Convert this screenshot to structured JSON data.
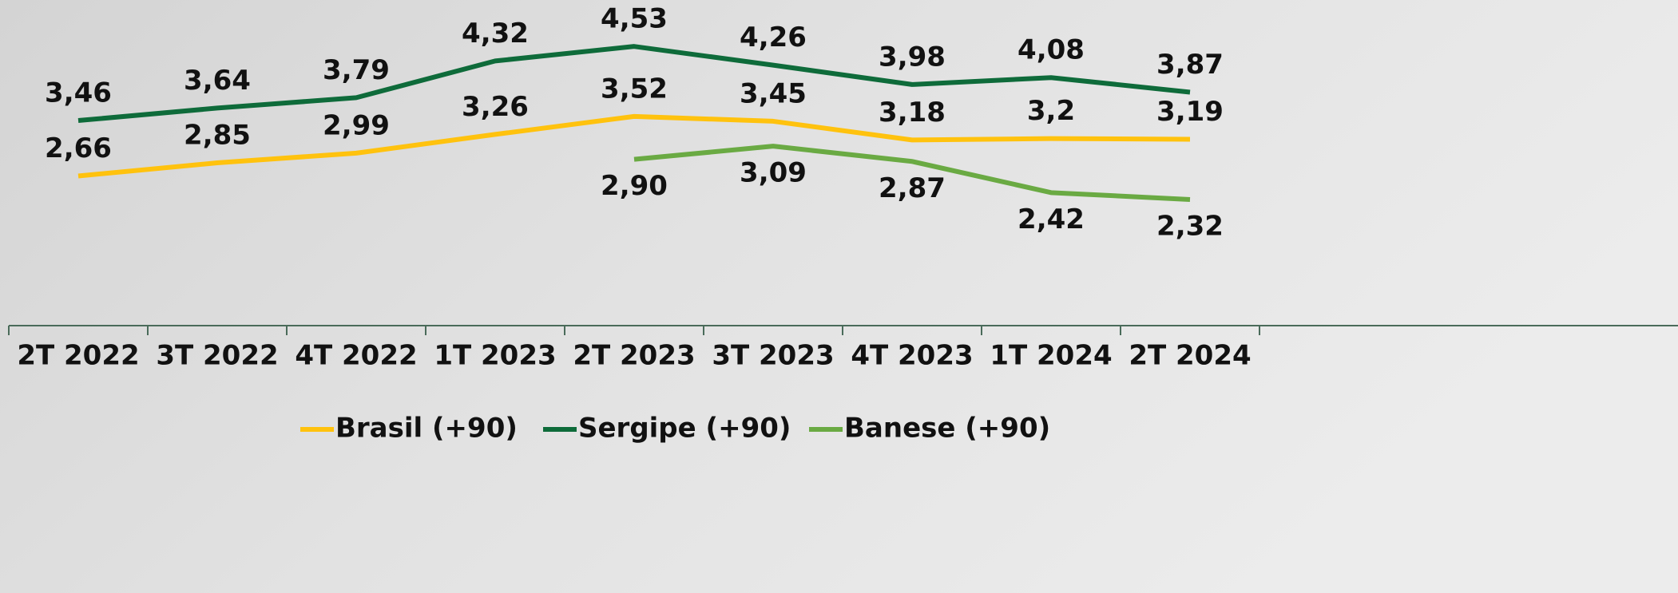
{
  "chart_data": {
    "type": "line",
    "categories": [
      "2T 2022",
      "3T 2022",
      "4T 2022",
      "1T 2023",
      "2T 2023",
      "3T 2023",
      "4T 2023",
      "1T 2024",
      "2T 2024"
    ],
    "series": [
      {
        "name": "Brasil (+90)",
        "color": "#ffc20e",
        "values": [
          2.66,
          2.85,
          2.99,
          3.26,
          3.52,
          3.45,
          3.18,
          3.2,
          3.19
        ],
        "value_labels": [
          "2,66",
          "2,85",
          "2,99",
          "3,26",
          "3,52",
          "3,45",
          "3,18",
          "3,2",
          "3,19"
        ]
      },
      {
        "name": "Sergipe (+90)",
        "color": "#0e6b3a",
        "values": [
          3.46,
          3.64,
          3.79,
          4.32,
          4.53,
          4.26,
          3.98,
          4.08,
          3.87
        ],
        "value_labels": [
          "3,46",
          "3,64",
          "3,79",
          "4,32",
          "4,53",
          "4,26",
          "3,98",
          "4,08",
          "3,87"
        ]
      },
      {
        "name": "Banese (+90)",
        "color": "#6aaa43",
        "values": [
          null,
          null,
          null,
          null,
          2.9,
          3.09,
          2.87,
          2.42,
          2.32
        ],
        "value_labels": [
          null,
          null,
          null,
          null,
          "2,90",
          "3,09",
          "2,87",
          "2,42",
          "2,32"
        ]
      }
    ],
    "ylim": [
      0.5,
      5.2
    ]
  }
}
